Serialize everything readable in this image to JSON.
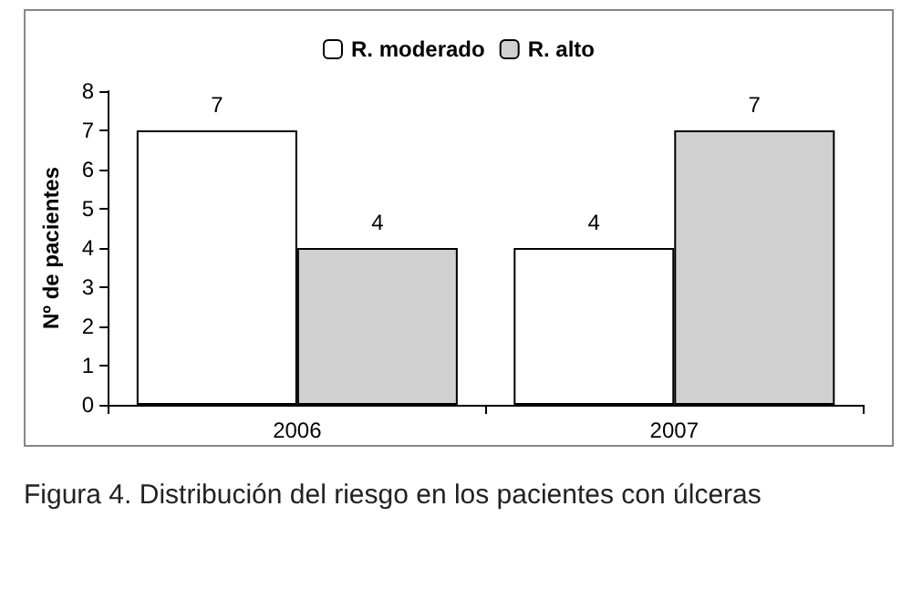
{
  "chart_data": {
    "type": "bar",
    "ylabel": "Nº de pacientes",
    "categories": [
      "2006",
      "2007"
    ],
    "series": [
      {
        "name": "R. moderado",
        "color": "#ffffff",
        "values": [
          7,
          4
        ]
      },
      {
        "name": "R. alto",
        "color": "#d0d0d0",
        "values": [
          4,
          7
        ]
      }
    ],
    "ylim": [
      0,
      8
    ],
    "yticks": [
      0,
      1,
      2,
      3,
      4,
      5,
      6,
      7,
      8
    ],
    "grid": false,
    "legend": "top",
    "data_labels": true,
    "annotations": [
      "Figura 4. Distribución del riesgo en los pacientes con úlceras"
    ]
  }
}
